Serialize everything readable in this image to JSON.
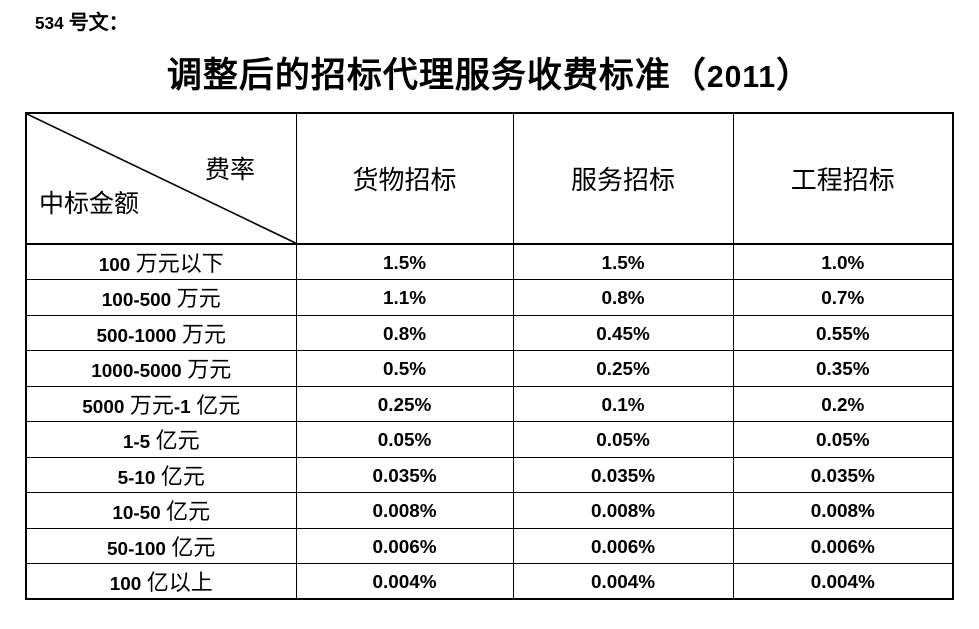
{
  "page": {
    "doc_ref": "534 号文：",
    "title": "调整后的招标代理服务收费标准（2011）"
  },
  "table": {
    "corner": {
      "rate": "费率",
      "amount": "中标金额"
    },
    "columns": [
      "货物招标",
      "服务招标",
      "工程招标"
    ],
    "rows": [
      {
        "label": "100 万元以下",
        "values": [
          "1.5%",
          "1.5%",
          "1.0%"
        ]
      },
      {
        "label": "100-500 万元",
        "values": [
          "1.1%",
          "0.8%",
          "0.7%"
        ]
      },
      {
        "label": "500-1000 万元",
        "values": [
          "0.8%",
          "0.45%",
          "0.55%"
        ]
      },
      {
        "label": "1000-5000 万元",
        "values": [
          "0.5%",
          "0.25%",
          "0.35%"
        ]
      },
      {
        "label": "5000 万元-1 亿元",
        "values": [
          "0.25%",
          "0.1%",
          "0.2%"
        ]
      },
      {
        "label": "1-5 亿元",
        "values": [
          "0.05%",
          "0.05%",
          "0.05%"
        ]
      },
      {
        "label": "5-10 亿元",
        "values": [
          "0.035%",
          "0.035%",
          "0.035%"
        ]
      },
      {
        "label": "10-50 亿元",
        "values": [
          "0.008%",
          "0.008%",
          "0.008%"
        ]
      },
      {
        "label": "50-100 亿元",
        "values": [
          "0.006%",
          "0.006%",
          "0.006%"
        ]
      },
      {
        "label": "100 亿以上",
        "values": [
          "0.004%",
          "0.004%",
          "0.004%"
        ]
      }
    ],
    "colors": {
      "text": "#000000",
      "border": "#000000",
      "background": "#ffffff"
    }
  }
}
